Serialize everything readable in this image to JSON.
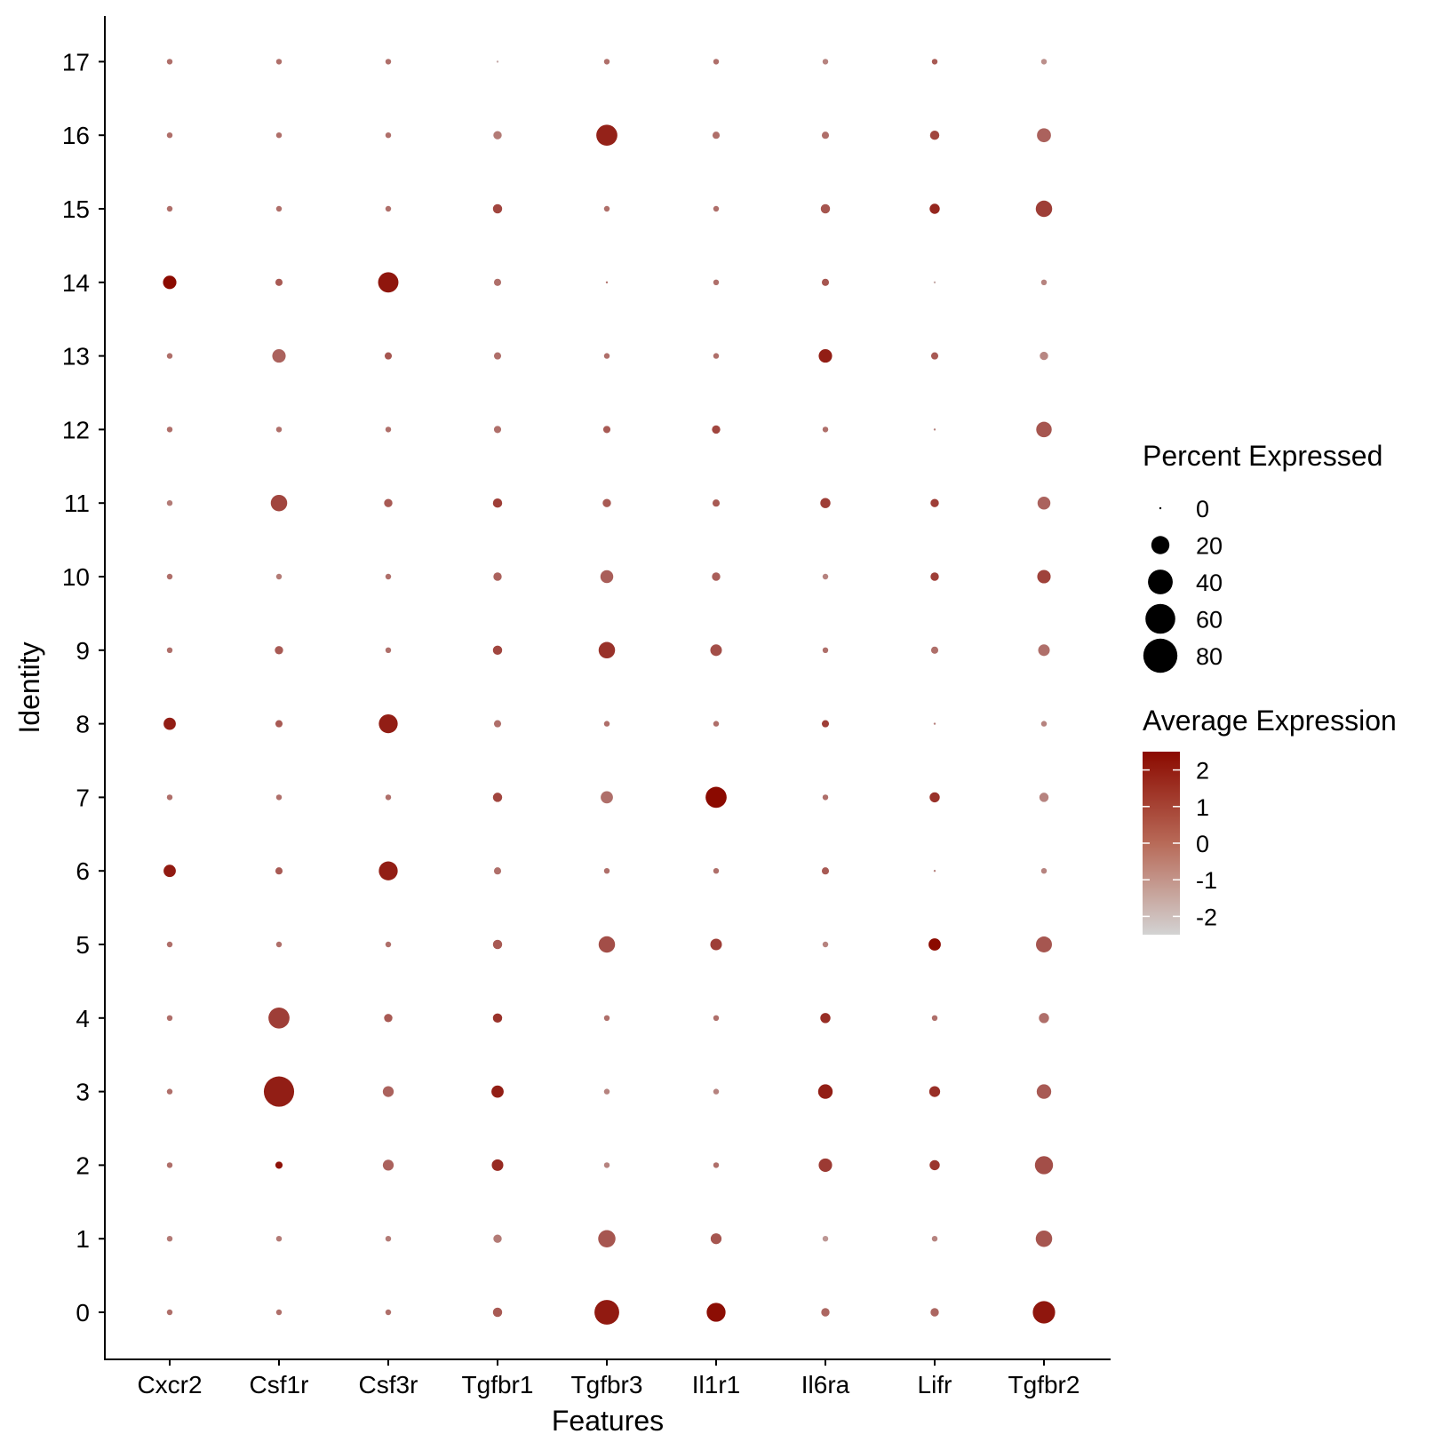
{
  "chart_data": {
    "type": "dotplot",
    "xlabel": "Features",
    "ylabel": "Identity",
    "features": [
      "Cxcr2",
      "Csf1r",
      "Csf3r",
      "Tgfbr1",
      "Tgfbr3",
      "Il1r1",
      "Il6ra",
      "Lifr",
      "Tgfbr2"
    ],
    "identities": [
      "0",
      "1",
      "2",
      "3",
      "4",
      "5",
      "6",
      "7",
      "8",
      "9",
      "10",
      "11",
      "12",
      "13",
      "14",
      "15",
      "16",
      "17"
    ],
    "percent_expressed": [
      [
        1,
        1,
        1,
        4,
        40,
        22,
        3,
        3,
        32
      ],
      [
        1,
        1,
        1,
        3,
        18,
        6,
        1,
        1,
        16
      ],
      [
        1,
        2,
        6,
        7,
        1,
        1,
        10,
        5,
        20
      ],
      [
        1,
        62,
        6,
        8,
        1,
        1,
        12,
        6,
        12
      ],
      [
        1,
        28,
        3,
        4,
        1,
        1,
        5,
        1,
        5
      ],
      [
        1,
        1,
        1,
        4,
        16,
        7,
        1,
        8,
        15
      ],
      [
        8,
        2,
        22,
        2,
        1,
        1,
        2,
        0,
        1
      ],
      [
        1,
        1,
        1,
        4,
        8,
        28,
        1,
        5,
        4
      ],
      [
        8,
        2,
        22,
        2,
        1,
        1,
        2,
        0,
        1
      ],
      [
        1,
        3,
        1,
        4,
        16,
        7,
        1,
        2,
        7
      ],
      [
        1,
        1,
        1,
        3,
        9,
        3,
        1,
        3,
        10
      ],
      [
        1,
        16,
        3,
        4,
        3,
        2,
        5,
        3,
        9
      ],
      [
        1,
        1,
        1,
        2,
        2,
        3,
        1,
        0,
        14
      ],
      [
        1,
        10,
        2,
        2,
        1,
        1,
        10,
        2,
        3
      ],
      [
        10,
        2,
        26,
        2,
        0,
        1,
        2,
        0,
        1
      ],
      [
        1,
        1,
        1,
        4,
        1,
        1,
        4,
        5,
        16
      ],
      [
        1,
        1,
        1,
        3,
        28,
        2,
        2,
        4,
        11
      ],
      [
        1,
        1,
        1,
        0,
        1,
        1,
        1,
        1,
        1
      ]
    ],
    "average_expression": [
      [
        0,
        0,
        0,
        0.5,
        2.1,
        2.4,
        0.2,
        0.2,
        2.2
      ],
      [
        -0.3,
        -0.3,
        -0.3,
        -0.3,
        0.6,
        0.6,
        -1,
        -0.5,
        0.6
      ],
      [
        0,
        2.3,
        0.3,
        1.7,
        -0.5,
        0,
        1.3,
        1.4,
        0.8
      ],
      [
        0,
        2.0,
        0.3,
        2.0,
        -0.5,
        -0.5,
        2.0,
        1.6,
        0.5
      ],
      [
        0,
        1.2,
        0.5,
        1.5,
        0,
        0,
        1.6,
        0,
        0
      ],
      [
        0,
        0,
        0,
        0.5,
        0.8,
        1.2,
        -0.5,
        2.5,
        0.6
      ],
      [
        2.1,
        0.5,
        2.0,
        0,
        0,
        0,
        0.5,
        -0.5,
        -0.5
      ],
      [
        0,
        0,
        0,
        1.0,
        0,
        2.5,
        0,
        1.5,
        -0.5
      ],
      [
        2.0,
        0.5,
        2.0,
        0,
        0,
        0,
        1.2,
        -0.5,
        -0.5
      ],
      [
        0,
        0.5,
        0,
        1.0,
        1.5,
        0.8,
        0,
        0,
        0
      ],
      [
        0,
        -0.3,
        0,
        0.3,
        0.4,
        0.4,
        -0.5,
        1.2,
        1.1
      ],
      [
        -0.3,
        1.0,
        0.5,
        1.2,
        0.5,
        0.5,
        1.2,
        1.2,
        0.3
      ],
      [
        0,
        0,
        0,
        0,
        0.5,
        1.0,
        0,
        -0.5,
        0.6
      ],
      [
        0,
        0.3,
        0.6,
        0,
        0,
        0,
        2.0,
        0.5,
        -0.6
      ],
      [
        2.5,
        0.5,
        2.2,
        0,
        0,
        0,
        0.6,
        -1.5,
        -0.5
      ],
      [
        0,
        0,
        0,
        1.0,
        0,
        0,
        0.6,
        1.8,
        1.2
      ],
      [
        0,
        0,
        0,
        -0.3,
        1.9,
        0,
        0,
        1.0,
        0.3
      ],
      [
        0,
        0,
        0,
        -1.5,
        0,
        0,
        -0.5,
        0.5,
        -0.8
      ]
    ],
    "size_legend": {
      "title": "Percent Expressed",
      "breaks": [
        0,
        20,
        40,
        60,
        80
      ],
      "labels": [
        "0",
        "20",
        "40",
        "60",
        "80"
      ]
    },
    "color_legend": {
      "title": "Average Expression",
      "breaks": [
        2,
        1,
        0,
        -1,
        -2
      ],
      "labels": [
        "2",
        "1",
        "0",
        "-1",
        "-2"
      ],
      "low_color": "#d3d3d3",
      "high_color": "#8b0a00",
      "range": [
        -2.5,
        2.5
      ]
    }
  },
  "colors": {
    "axis": "#000000",
    "background": "#ffffff"
  }
}
